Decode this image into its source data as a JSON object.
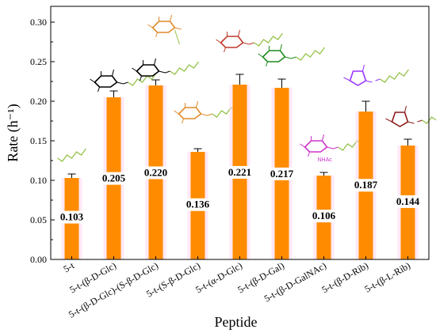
{
  "chart_data": {
    "type": "bar",
    "categories": [
      "5-t",
      "5-t-(β-D-Glc)",
      "5-t-(β-D-Glc)-(S-β-D-Glc)",
      "5-t-(S-β-D-Glc)",
      "5-t-(α-D-Glc)",
      "5-t-(β-D-Gal)",
      "5-t-(β-D-GalNAc)",
      "5-t-(β-D-Rib)",
      "5-t-(β-L-Rib)"
    ],
    "values": [
      0.103,
      0.205,
      0.22,
      0.136,
      0.221,
      0.217,
      0.106,
      0.187,
      0.144
    ],
    "errors": [
      0.005,
      0.008,
      0.007,
      0.004,
      0.013,
      0.011,
      0.004,
      0.013,
      0.008
    ],
    "data_labels": [
      "0.103",
      "0.205",
      "0.220",
      "0.136",
      "0.221",
      "0.217",
      "0.106",
      "0.187",
      "0.144"
    ],
    "xlabel": "Peptide",
    "ylabel": "Rate (h⁻¹)",
    "ylim": [
      0.0,
      0.32
    ],
    "yticks": [
      "0.00",
      "0.05",
      "0.10",
      "0.15",
      "0.20",
      "0.25",
      "0.30"
    ],
    "sugar_structure_labels": [
      "",
      "",
      "",
      "",
      "",
      "",
      "NHAc",
      "",
      ""
    ],
    "grid": false,
    "colors": {
      "bar": "#ff8c00",
      "bar_highlight": "#ffd6ee",
      "error_bar": "#000000",
      "chain": "#90c040",
      "glc": "#000000",
      "s_glc": "#e08a2a",
      "alpha_glc": "#c0392b",
      "gal": "#1e8c1e",
      "galnac": "#cc33cc",
      "d_rib": "#9933ff",
      "l_rib": "#8b1a1a"
    },
    "sugar_icons": [
      "none",
      "beta-d-glucose-icon",
      "beta-d-glucose-icon",
      "s-beta-d-glucose-icon",
      "alpha-d-glucose-icon",
      "beta-d-galactose-icon",
      "beta-d-galnac-icon",
      "beta-d-ribose-icon",
      "beta-l-ribose-icon"
    ]
  }
}
